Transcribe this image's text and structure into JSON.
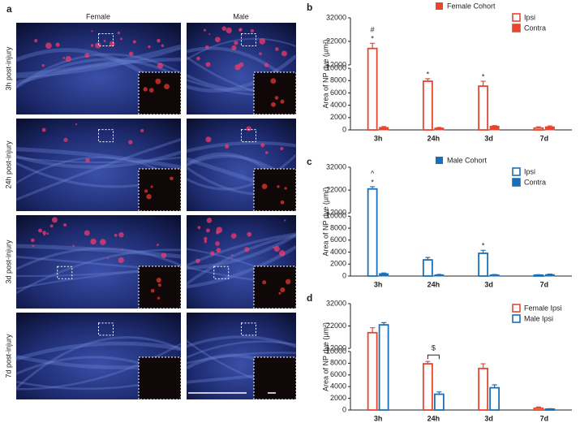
{
  "panel_a": {
    "label": "a",
    "columns": [
      "Female",
      "Male"
    ],
    "rows": [
      "3h post-injury",
      "24h post-injury",
      "3d post-injury",
      "7d post-injury"
    ]
  },
  "chart_data": [
    {
      "type": "bar",
      "panel": "b",
      "title": "Female Cohort",
      "y_label": "Area of NP dye (µm²)",
      "categories": [
        "3h",
        "24h",
        "3d",
        "7d"
      ],
      "series": [
        {
          "name": "Ipsi",
          "color": "#e8452c",
          "style": "open",
          "values": [
            19000,
            7900,
            7100,
            300
          ],
          "errors": [
            2200,
            400,
            800,
            200
          ]
        },
        {
          "name": "Contra",
          "color": "#e8452c",
          "style": "filled",
          "values": [
            400,
            300,
            600,
            500
          ],
          "errors": [
            150,
            100,
            100,
            150
          ]
        }
      ],
      "ylim": [
        0,
        32000
      ],
      "ybreak": [
        10000,
        12000
      ],
      "yticks": [
        0,
        2000,
        4000,
        6000,
        8000,
        10000,
        12000,
        22000,
        32000
      ],
      "annotations": [
        {
          "text": "*",
          "at": "3h"
        },
        {
          "text": "#",
          "at": "3h"
        },
        {
          "text": "*",
          "at": "24h"
        },
        {
          "text": "*",
          "at": "3d"
        }
      ]
    },
    {
      "type": "bar",
      "panel": "c",
      "title": "Male Cohort",
      "y_label": "Area of NP dye (µm²)",
      "categories": [
        "3h",
        "24h",
        "3d",
        "7d"
      ],
      "series": [
        {
          "name": "Ipsi",
          "color": "#1a6fb8",
          "style": "open",
          "values": [
            22500,
            2700,
            3800,
            150
          ],
          "errors": [
            1000,
            400,
            500,
            80
          ]
        },
        {
          "name": "Contra",
          "color": "#1a6fb8",
          "style": "filled",
          "values": [
            400,
            200,
            200,
            250
          ],
          "errors": [
            120,
            80,
            60,
            80
          ]
        }
      ],
      "ylim": [
        0,
        32000
      ],
      "ybreak": [
        10000,
        12000
      ],
      "yticks": [
        0,
        2000,
        4000,
        6000,
        8000,
        10000,
        12000,
        22000,
        32000
      ],
      "annotations": [
        {
          "text": "*",
          "at": "3h"
        },
        {
          "text": "^",
          "at": "3h"
        },
        {
          "text": "*",
          "at": "3d"
        }
      ]
    },
    {
      "type": "bar",
      "panel": "d",
      "y_label": "Area of NP dye (µm²)",
      "categories": [
        "3h",
        "24h",
        "3d",
        "7d"
      ],
      "series": [
        {
          "name": "Female Ipsi",
          "color": "#e8452c",
          "style": "open",
          "values": [
            19000,
            7900,
            7100,
            300
          ],
          "errors": [
            2200,
            400,
            800,
            200
          ]
        },
        {
          "name": "Male Ipsi",
          "color": "#1a6fb8",
          "style": "open",
          "values": [
            22500,
            2700,
            3800,
            150
          ],
          "errors": [
            1000,
            400,
            500,
            80
          ]
        }
      ],
      "ylim": [
        0,
        32000
      ],
      "ybreak": [
        10000,
        12000
      ],
      "yticks": [
        0,
        2000,
        4000,
        6000,
        8000,
        10000,
        12000,
        22000,
        32000
      ],
      "annotations": [
        {
          "text": "$",
          "at": "24h",
          "bracket": true
        }
      ]
    }
  ]
}
